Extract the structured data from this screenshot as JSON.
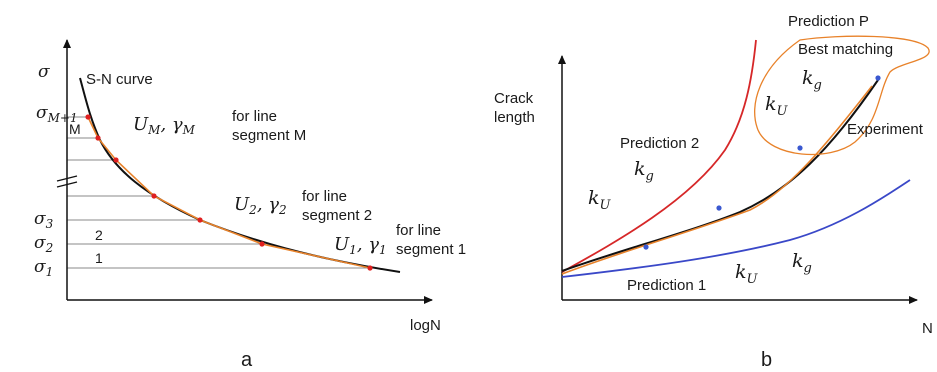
{
  "panel_a": {
    "caption": "a",
    "y_axis_symbol": "σ",
    "x_axis_label": "logN",
    "curve_label": "S-N curve",
    "stress_levels": {
      "top": "σ_{M+1}",
      "s3": "σ3",
      "s2": "σ2",
      "s1": "σ1"
    },
    "band_labels": {
      "m": "M",
      "two": "2",
      "one": "1"
    },
    "segment_m": {
      "params": "U_M, γ_M",
      "text_line1": "for line",
      "text_line2": "segment M"
    },
    "segment_2": {
      "params": "U2, γ2",
      "text_line1": "for line",
      "text_line2": "segment 2"
    },
    "segment_1": {
      "params": "U1, γ1",
      "text_line1": "for line",
      "text_line2": "segment 1"
    },
    "colors": {
      "curve": "#111111",
      "fit": "#e8822a",
      "points": "#e02020",
      "grid": "#888888"
    }
  },
  "panel_b": {
    "caption": "b",
    "y_axis_label_line1": "Crack",
    "y_axis_label_line2": "length",
    "x_axis_label": "N",
    "prediction_p": "Prediction P",
    "best_matching": "Best matching",
    "prediction_2": "Prediction 2",
    "prediction_1": "Prediction 1",
    "experiment": "Experiment",
    "k_g": "k_g",
    "k_u": "k_U",
    "colors": {
      "prediction2": "#d62728",
      "prediction1": "#3a48c8",
      "experiment": "#111111",
      "fit": "#e8822a",
      "points": "#3a58d0"
    }
  }
}
